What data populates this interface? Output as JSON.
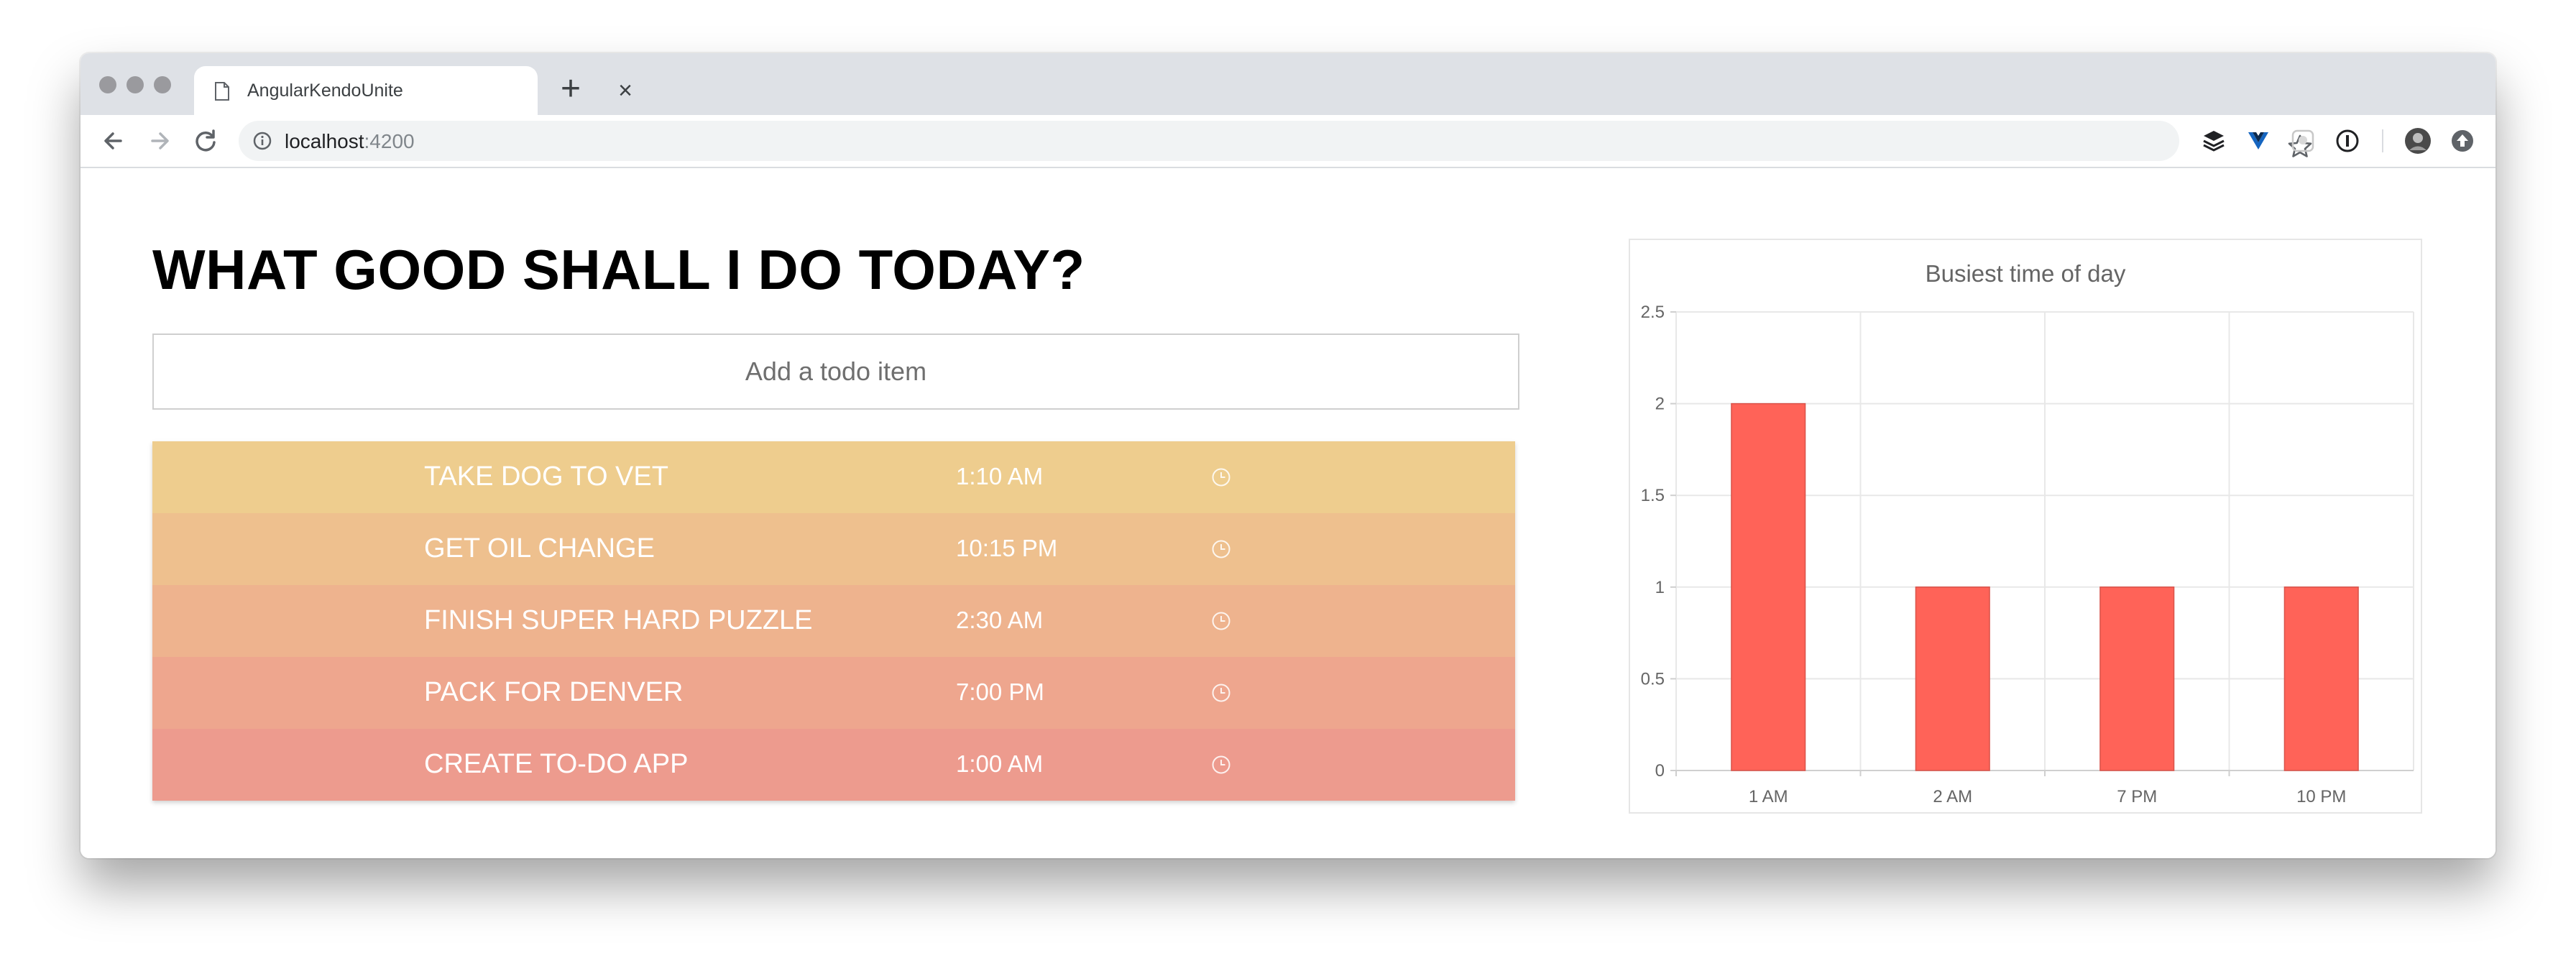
{
  "browser": {
    "tab_title": "AngularKendoUnite",
    "url_host": "localhost",
    "url_port": ":4200"
  },
  "page": {
    "title": "WHAT GOOD SHALL I DO TODAY?",
    "input_placeholder": "Add a todo item"
  },
  "todos": [
    {
      "text": "TAKE DOG TO VET",
      "time": "1:10 AM",
      "color": "#eecd8e"
    },
    {
      "text": "GET OIL CHANGE",
      "time": "10:15 PM",
      "color": "#eec08e"
    },
    {
      "text": "FINISH SUPER HARD PUZZLE",
      "time": "2:30 AM",
      "color": "#eeb38e"
    },
    {
      "text": "PACK FOR DENVER",
      "time": "7:00 PM",
      "color": "#eea68e"
    },
    {
      "text": "CREATE TO-DO APP",
      "time": "1:00 AM",
      "color": "#ed9b8e"
    }
  ],
  "chart_data": {
    "type": "bar",
    "title": "Busiest time of day",
    "categories": [
      "1 AM",
      "2 AM",
      "7 PM",
      "10 PM"
    ],
    "values": [
      2,
      1,
      1,
      1
    ],
    "ylim": [
      0,
      2.5
    ],
    "yticks": [
      "0",
      "0.5",
      "1",
      "1.5",
      "2",
      "2.5"
    ],
    "bar_color": "#ff6358",
    "grid": true
  }
}
